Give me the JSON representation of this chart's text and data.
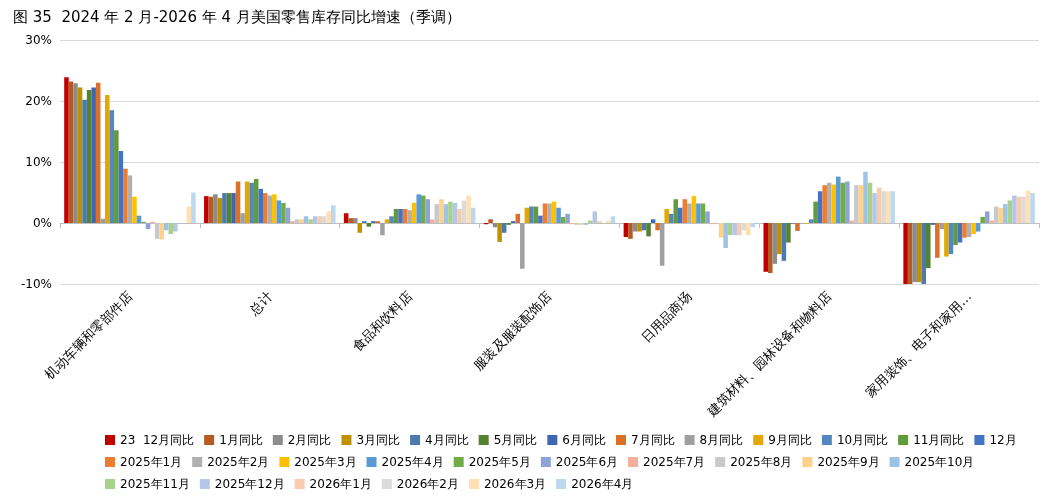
{
  "chart_data": {
    "type": "bar",
    "title": "图 35  2024 年 2 月-2026 年 4 月美国零售库存同比增速（季调）",
    "categories": [
      "机动车辆和零部件店",
      "总计",
      "食品和饮料店",
      "服装及服装配饰店",
      "日用品商场",
      "建筑材料、园林设备和物料店",
      "家用装饰、电子和家用…"
    ],
    "series": [
      {
        "name": "23  12月同比",
        "color": "#c00000",
        "values": [
          23.9,
          4.4,
          1.6,
          -0.2,
          -2.3,
          -8.0,
          -10.0
        ]
      },
      {
        "name": "1月同比",
        "color": "#b65a24",
        "values": [
          23.2,
          4.3,
          0.8,
          0.6,
          -2.6,
          -8.2,
          -10.0
        ]
      },
      {
        "name": "2月同比",
        "color": "#8c8c8c",
        "values": [
          22.9,
          4.7,
          0.8,
          -0.7,
          -1.4,
          -6.7,
          -9.7
        ]
      },
      {
        "name": "3月同比",
        "color": "#bf9000",
        "values": [
          22.2,
          4.1,
          -1.6,
          -3.1,
          -1.4,
          -5.1,
          -9.7
        ]
      },
      {
        "name": "4月同比",
        "color": "#4a7ab0",
        "values": [
          20.2,
          4.9,
          0.3,
          -1.6,
          -1.2,
          -6.2,
          -10.0
        ]
      },
      {
        "name": "5月同比",
        "color": "#548235",
        "values": [
          21.8,
          4.9,
          -0.6,
          -0.3,
          -2.2,
          -3.2,
          -7.4
        ]
      },
      {
        "name": "6月同比",
        "color": "#3f66b0",
        "values": [
          22.2,
          4.9,
          0.3,
          0.3,
          0.6,
          -0.1,
          -0.3
        ]
      },
      {
        "name": "7月同比",
        "color": "#d9712a",
        "values": [
          23.0,
          6.8,
          0.3,
          1.5,
          -1.2,
          -1.3,
          -5.7
        ]
      },
      {
        "name": "8月同比",
        "color": "#a0a0a0",
        "values": [
          0.7,
          1.6,
          -2.0,
          -7.5,
          -7.0,
          -0.1,
          -1.0
        ]
      },
      {
        "name": "9月同比",
        "color": "#e0a800",
        "values": [
          21.0,
          6.8,
          0.6,
          2.5,
          2.3,
          -0.1,
          -5.5
        ]
      },
      {
        "name": "10月同比",
        "color": "#5287c2",
        "values": [
          18.5,
          6.6,
          1.1,
          2.7,
          1.5,
          0.6,
          -5.1
        ]
      },
      {
        "name": "11月同比",
        "color": "#5f9a3c",
        "values": [
          15.2,
          7.2,
          2.3,
          2.7,
          3.9,
          3.5,
          -3.6
        ]
      },
      {
        "name": "12月",
        "color": "#4472c4",
        "values": [
          11.8,
          5.6,
          2.3,
          1.2,
          2.5,
          5.2,
          -3.2
        ]
      },
      {
        "name": "2025年1月",
        "color": "#ed7d31",
        "values": [
          8.9,
          4.9,
          2.3,
          3.2,
          3.9,
          6.2,
          -2.4
        ]
      },
      {
        "name": "2025年2月",
        "color": "#b0b0b0",
        "values": [
          7.8,
          4.5,
          2.1,
          3.2,
          3.2,
          6.6,
          -2.3
        ]
      },
      {
        "name": "2025年3月",
        "color": "#ffc000",
        "values": [
          4.3,
          4.7,
          3.3,
          3.5,
          4.4,
          6.3,
          -1.8
        ]
      },
      {
        "name": "2025年4月",
        "color": "#5b9bd5",
        "values": [
          1.2,
          3.7,
          4.7,
          2.5,
          3.2,
          7.6,
          -1.4
        ]
      },
      {
        "name": "2025年5月",
        "color": "#70ad47",
        "values": [
          0.2,
          3.3,
          4.5,
          1.0,
          3.2,
          6.6,
          1.0
        ]
      },
      {
        "name": "2025年6月",
        "color": "#8fa3d6",
        "values": [
          -1.0,
          2.5,
          3.9,
          1.5,
          1.9,
          6.8,
          1.9
        ]
      },
      {
        "name": "2025年7月",
        "color": "#f4b09a",
        "values": [
          0.2,
          0.3,
          0.6,
          -0.2,
          -0.2,
          0.4,
          0.4
        ]
      },
      {
        "name": "2025年8月",
        "color": "#c9c9c9",
        "values": [
          -2.6,
          0.6,
          3.1,
          -0.3,
          null,
          6.2,
          2.7
        ]
      },
      {
        "name": "2025年9月",
        "color": "#ffd28a",
        "values": [
          -2.7,
          0.6,
          3.9,
          -0.3,
          -2.4,
          6.2,
          2.5
        ]
      },
      {
        "name": "2025年10月",
        "color": "#9dc3e6",
        "values": [
          -1.2,
          1.1,
          3.1,
          -0.3,
          -4.1,
          8.4,
          3.1
        ]
      },
      {
        "name": "2025年11月",
        "color": "#a9d18e",
        "values": [
          -1.8,
          0.6,
          3.5,
          0.4,
          -2.0,
          6.6,
          3.7
        ]
      },
      {
        "name": "2025年12月",
        "color": "#b4c7e7",
        "values": [
          -1.4,
          1.1,
          3.3,
          1.9,
          -2.0,
          4.9,
          4.5
        ]
      },
      {
        "name": "2026年1月",
        "color": "#f8cbad",
        "values": [
          null,
          1.1,
          2.3,
          0.3,
          -2.0,
          5.8,
          4.3
        ]
      },
      {
        "name": "2026年2月",
        "color": "#dbdbdb",
        "values": [
          null,
          1.1,
          3.7,
          null,
          -1.2,
          5.2,
          4.3
        ]
      },
      {
        "name": "2026年3月",
        "color": "#ffe0b3",
        "values": [
          2.7,
          1.9,
          4.5,
          0.4,
          -2.0,
          5.2,
          5.3
        ]
      },
      {
        "name": "2026年4月",
        "color": "#bdd7ee",
        "values": [
          5.0,
          2.9,
          2.5,
          1.1,
          -0.7,
          5.2,
          4.9
        ]
      }
    ],
    "ylim": [
      -10,
      30
    ],
    "yticks": [
      {
        "value": -10,
        "label": "-10%"
      },
      {
        "value": 0,
        "label": "0%"
      },
      {
        "value": 10,
        "label": "10%"
      },
      {
        "value": 20,
        "label": "20%"
      },
      {
        "value": 30,
        "label": "30%"
      }
    ],
    "grid": "y",
    "legend": "bottom"
  }
}
